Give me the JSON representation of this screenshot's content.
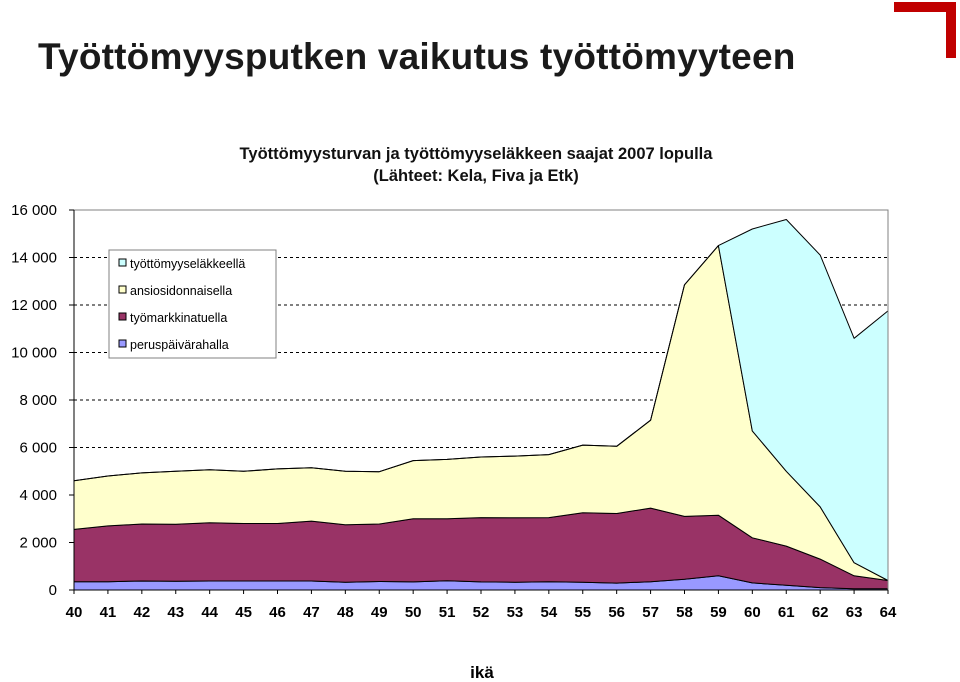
{
  "slide": {
    "title": "Työttömyysputken vaikutus työttömyyteen",
    "accent_color": "#c00000"
  },
  "chart_data": {
    "type": "area",
    "stacked": true,
    "title_lines": [
      "Työttömyysturvan ja työttömyyseläkkeen saajat 2007 lopulla",
      "(Lähteet: Kela, Fiva ja Etk)"
    ],
    "xlabel": "ikä",
    "ylabel": "",
    "x": [
      40,
      41,
      42,
      43,
      44,
      45,
      46,
      47,
      48,
      49,
      50,
      51,
      52,
      53,
      54,
      55,
      56,
      57,
      58,
      59,
      60,
      61,
      62,
      63,
      64
    ],
    "ylim": [
      0,
      16000
    ],
    "yticks": [
      0,
      2000,
      4000,
      6000,
      8000,
      10000,
      12000,
      14000,
      16000
    ],
    "ytick_labels": [
      "0",
      "2 000",
      "4 000",
      "6 000",
      "8 000",
      "10 000",
      "12 000",
      "14 000",
      "16 000"
    ],
    "grid": "horizontal dashed",
    "legend_position": "top-left",
    "series": [
      {
        "name": "peruspäivärahalla",
        "color": "#9999ff",
        "values": [
          350,
          350,
          380,
          370,
          380,
          380,
          380,
          380,
          330,
          360,
          340,
          390,
          340,
          330,
          350,
          330,
          290,
          350,
          450,
          600,
          300,
          200,
          100,
          50,
          50
        ]
      },
      {
        "name": "työmarkkinatuella",
        "color": "#993366",
        "values": [
          2200,
          2350,
          2400,
          2400,
          2450,
          2420,
          2420,
          2520,
          2420,
          2420,
          2660,
          2610,
          2710,
          2710,
          2700,
          2920,
          2930,
          3100,
          2650,
          2550,
          1900,
          1650,
          1200,
          550,
          350
        ]
      },
      {
        "name": "ansiosidonnaisella",
        "color": "#ffffcc",
        "values": [
          2050,
          2100,
          2150,
          2230,
          2230,
          2200,
          2300,
          2250,
          2250,
          2200,
          2450,
          2500,
          2550,
          2600,
          2650,
          2850,
          2830,
          3700,
          9750,
          11350,
          4500,
          3150,
          2200,
          550,
          0
        ]
      },
      {
        "name": "työttömyyseläkkeellä",
        "color": "#ccffff",
        "values": [
          0,
          0,
          0,
          0,
          0,
          0,
          0,
          0,
          0,
          0,
          0,
          0,
          0,
          0,
          0,
          0,
          0,
          0,
          0,
          0,
          8500,
          10600,
          10600,
          9450,
          11350
        ]
      }
    ],
    "legend_order": [
      "työttömyyseläkkeellä",
      "ansiosidonnaisella",
      "työmarkkinatuella",
      "peruspäivärahalla"
    ]
  }
}
